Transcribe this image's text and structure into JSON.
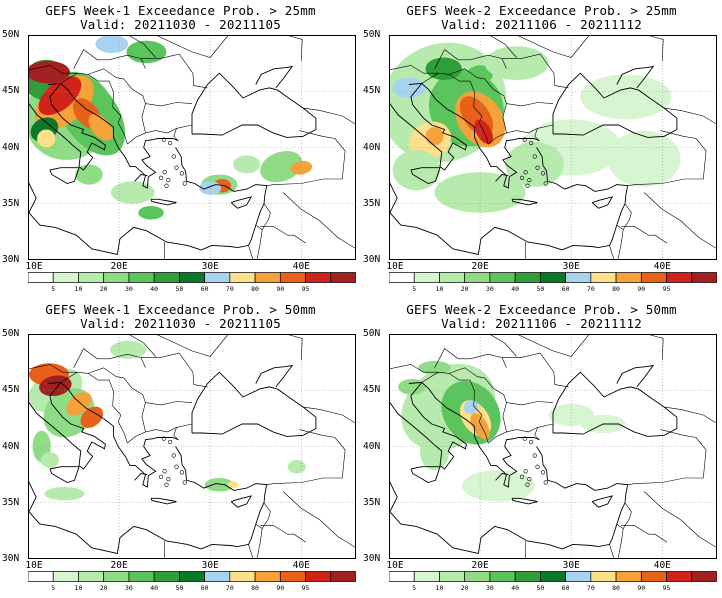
{
  "panels": [
    {
      "title_line1": "GEFS Week-1 Exceedance Prob. > 25mm",
      "title_line2": "Valid: 20211030 - 20211105"
    },
    {
      "title_line1": "GEFS Week-2 Exceedance Prob. > 25mm",
      "title_line2": "Valid: 20211106 - 20211112"
    },
    {
      "title_line1": "GEFS Week-1 Exceedance Prob. > 50mm",
      "title_line2": "Valid: 20211030 - 20211105"
    },
    {
      "title_line1": "GEFS Week-2 Exceedance Prob. > 50mm",
      "title_line2": "Valid: 20211106 - 20211112"
    }
  ],
  "lat_labels": [
    "50N",
    "45N",
    "40N",
    "35N",
    "30N"
  ],
  "lon_labels": [
    "10E",
    "20E",
    "30E",
    "40E"
  ],
  "colorbar": {
    "labels": [
      "5",
      "10",
      "20",
      "30",
      "40",
      "50",
      "60",
      "70",
      "80",
      "90",
      "95"
    ],
    "colors": [
      "#ffffff",
      "#d8f5d2",
      "#b7ebae",
      "#8fdb86",
      "#5cc45c",
      "#2f9e3a",
      "#0a7a2a",
      "#a7d3f0",
      "#fde08a",
      "#f6a23a",
      "#e8611a",
      "#d0241a",
      "#a32020"
    ]
  },
  "colors": {
    "land_border": "#000000",
    "grid": "#999999"
  }
}
